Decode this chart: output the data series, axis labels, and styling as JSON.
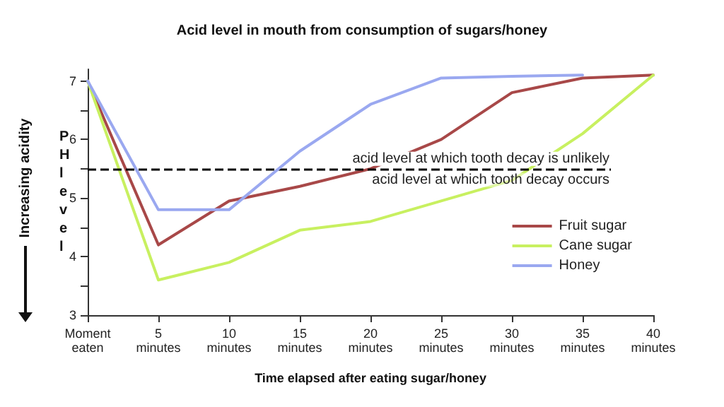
{
  "chart_data": {
    "type": "line",
    "title": "Acid level in mouth from consumption of sugars/honey",
    "xlabel": "Time elapsed after eating sugar/honey",
    "ylabel": "PH level",
    "categories": [
      "Moment eaten",
      "5 minutes",
      "10 minutes",
      "15 minutes",
      "20 minutes",
      "25 minutes",
      "30 minutes",
      "35 minutes",
      "40 minutes"
    ],
    "series": [
      {
        "name": "Fruit sugar",
        "color": "#a84848",
        "values": [
          7,
          4.2,
          4.95,
          5.2,
          5.5,
          6.0,
          6.8,
          7.05,
          7.1
        ]
      },
      {
        "name": "Cane sugar",
        "color": "#c8f060",
        "values": [
          7,
          3.6,
          3.9,
          4.45,
          4.6,
          4.95,
          5.3,
          6.1,
          7.1
        ]
      },
      {
        "name": "Honey",
        "color": "#9aa8f0",
        "values": [
          7,
          4.8,
          4.8,
          5.8,
          6.6,
          7.05,
          7.08,
          7.1,
          null
        ]
      }
    ],
    "ylim": [
      3,
      7.2
    ],
    "yticks": [
      3,
      {
        "value": 3.5,
        "label": null
      },
      4,
      {
        "value": 4.5,
        "label": null
      },
      5,
      {
        "value": 5.5,
        "label": null
      },
      6,
      {
        "value": 6.5,
        "label": null
      },
      7
    ],
    "ref_lines": [
      {
        "axis": "y",
        "value": 5.5,
        "label": "acid level at which tooth decay is unlikely",
        "color": "#000000",
        "line_style": "dashed"
      }
    ],
    "annotations": [
      "acid level at which tooth decay occurs",
      "Increasing acidity"
    ],
    "grid": false,
    "legend": "right",
    "marker": "none",
    "line_style": "solid"
  }
}
